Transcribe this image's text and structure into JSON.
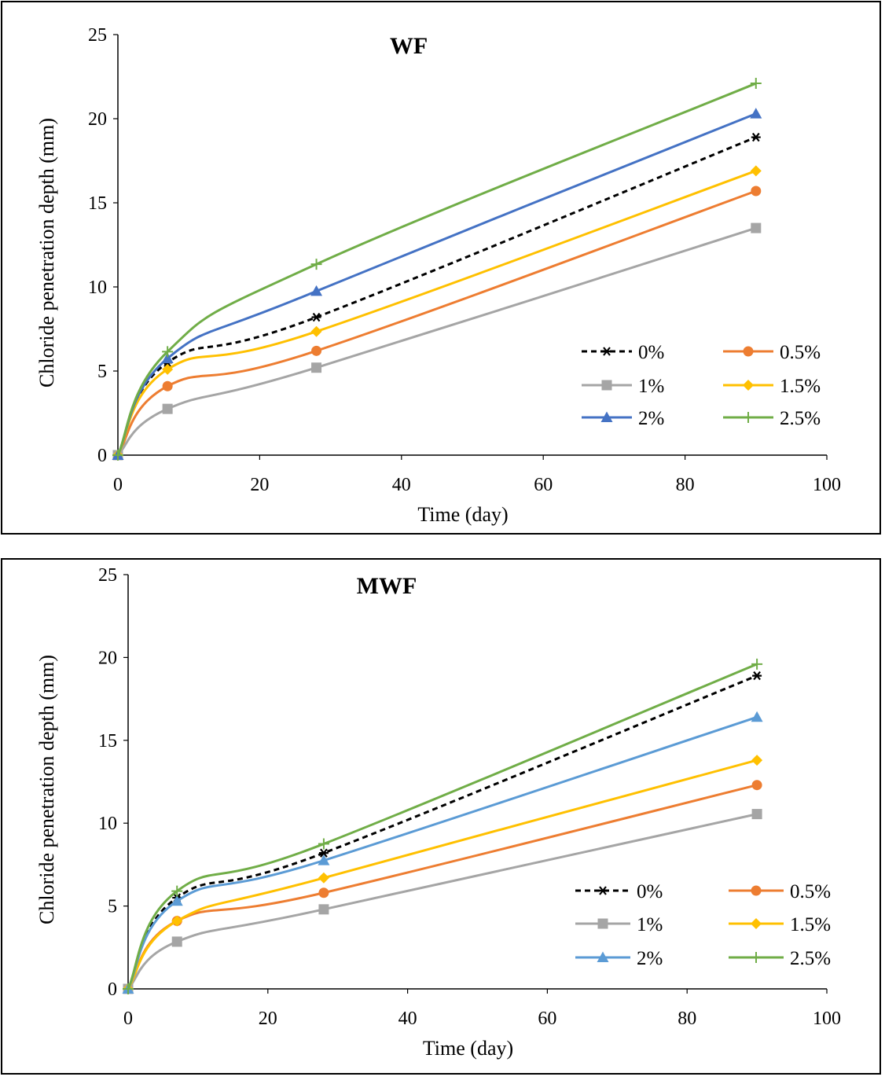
{
  "chart_data": [
    {
      "type": "line",
      "title": "WF",
      "xlabel": "Time (day)",
      "ylabel": "Chloride penetration depth (mm)",
      "xlim": [
        0,
        100
      ],
      "ylim": [
        0,
        25
      ],
      "xticks": [
        0,
        20,
        40,
        60,
        80,
        100
      ],
      "yticks": [
        0,
        5,
        10,
        15,
        20,
        25
      ],
      "x": [
        0,
        7,
        28,
        90
      ],
      "legend_position": "lower-right",
      "series": [
        {
          "name": "0%",
          "values": [
            0,
            5.5,
            8.2,
            18.9
          ],
          "color": "#000000",
          "marker": "star",
          "dash": true
        },
        {
          "name": "0.5%",
          "values": [
            0,
            4.1,
            6.2,
            15.7
          ],
          "color": "#ed7d31",
          "marker": "circle",
          "dash": false
        },
        {
          "name": "1%",
          "values": [
            0,
            2.75,
            5.2,
            13.5
          ],
          "color": "#a5a5a5",
          "marker": "square",
          "dash": false
        },
        {
          "name": "1.5%",
          "values": [
            0,
            5.1,
            7.35,
            16.9
          ],
          "color": "#ffc000",
          "marker": "diamond",
          "dash": false
        },
        {
          "name": "2%",
          "values": [
            0,
            5.75,
            9.75,
            20.3
          ],
          "color": "#4472c4",
          "marker": "triangle",
          "dash": false
        },
        {
          "name": "2.5%",
          "values": [
            0,
            6.15,
            11.35,
            22.1
          ],
          "color": "#70ad47",
          "marker": "plus",
          "dash": false
        }
      ]
    },
    {
      "type": "line",
      "title": "MWF",
      "xlabel": "Time (day)",
      "ylabel": "Chloride penetration depth (mm)",
      "xlim": [
        0,
        100
      ],
      "ylim": [
        0,
        25
      ],
      "xticks": [
        0,
        20,
        40,
        60,
        80,
        100
      ],
      "yticks": [
        0,
        5,
        10,
        15,
        20,
        25
      ],
      "x": [
        0,
        7,
        28,
        90
      ],
      "legend_position": "lower-right",
      "series": [
        {
          "name": "0%",
          "values": [
            0,
            5.5,
            8.2,
            18.9
          ],
          "color": "#000000",
          "marker": "star",
          "dash": true
        },
        {
          "name": "0.5%",
          "values": [
            0,
            4.1,
            5.8,
            12.3
          ],
          "color": "#ed7d31",
          "marker": "circle",
          "dash": false
        },
        {
          "name": "1%",
          "values": [
            0,
            2.85,
            4.8,
            10.55
          ],
          "color": "#a5a5a5",
          "marker": "square",
          "dash": false
        },
        {
          "name": "1.5%",
          "values": [
            0,
            4.1,
            6.7,
            13.8
          ],
          "color": "#ffc000",
          "marker": "diamond",
          "dash": false
        },
        {
          "name": "2%",
          "values": [
            0,
            5.3,
            7.75,
            16.4
          ],
          "color": "#5b9bd5",
          "marker": "triangle",
          "dash": false
        },
        {
          "name": "2.5%",
          "values": [
            0,
            5.9,
            8.75,
            19.6
          ],
          "color": "#70ad47",
          "marker": "plus",
          "dash": false
        }
      ]
    }
  ]
}
